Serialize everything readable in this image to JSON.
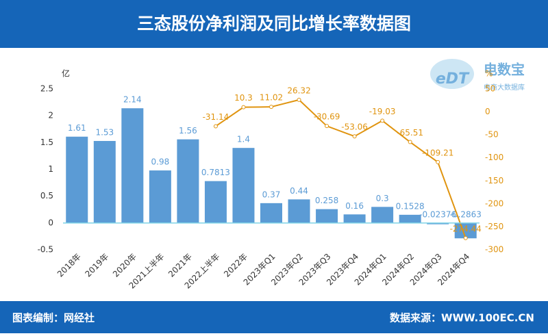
{
  "chart_data": {
    "type": "bar-line",
    "title": "三态股份净利润及同比增长率数据图",
    "y_unit": "亿",
    "y2_unit": "%",
    "categories": [
      "2018年",
      "2019年",
      "2020年",
      "2021上半年",
      "2021年",
      "2022上半年",
      "2022年",
      "2023年Q1",
      "2023年Q2",
      "2023年Q3",
      "2023年Q4",
      "2024年Q1",
      "2024年Q2",
      "2024年Q3",
      "2024年Q4"
    ],
    "series": [
      {
        "type": "bar",
        "color": "#5b9bd5",
        "values": [
          1.61,
          1.53,
          2.14,
          0.98,
          1.56,
          0.7813,
          1.4,
          0.37,
          0.44,
          0.258,
          0.16,
          0.3,
          0.1528,
          -0.02376,
          -0.2863
        ]
      },
      {
        "type": "line",
        "axis": "y2",
        "color": "#e0940f",
        "values": [
          null,
          null,
          null,
          null,
          null,
          -31.14,
          10.3,
          11.02,
          26.32,
          -30.69,
          -53.06,
          -19.03,
          -65.51,
          -109.21,
          -274.44
        ]
      }
    ],
    "ylim": [
      -0.5,
      2.5
    ],
    "yticks": [
      -0.5,
      0,
      0.5,
      1,
      1.5,
      2,
      2.5
    ],
    "y2lim": [
      -300,
      50
    ],
    "y2ticks": [
      -300,
      -250,
      -200,
      -150,
      -100,
      -50,
      0,
      50
    ],
    "grid": false,
    "logo": {
      "mark": "eDT",
      "name": "电数宝",
      "tagline": "电商大数据库"
    },
    "footer": {
      "left": "图表编制：网经社",
      "right": "数据来源：WWW.100EC.CN"
    }
  }
}
